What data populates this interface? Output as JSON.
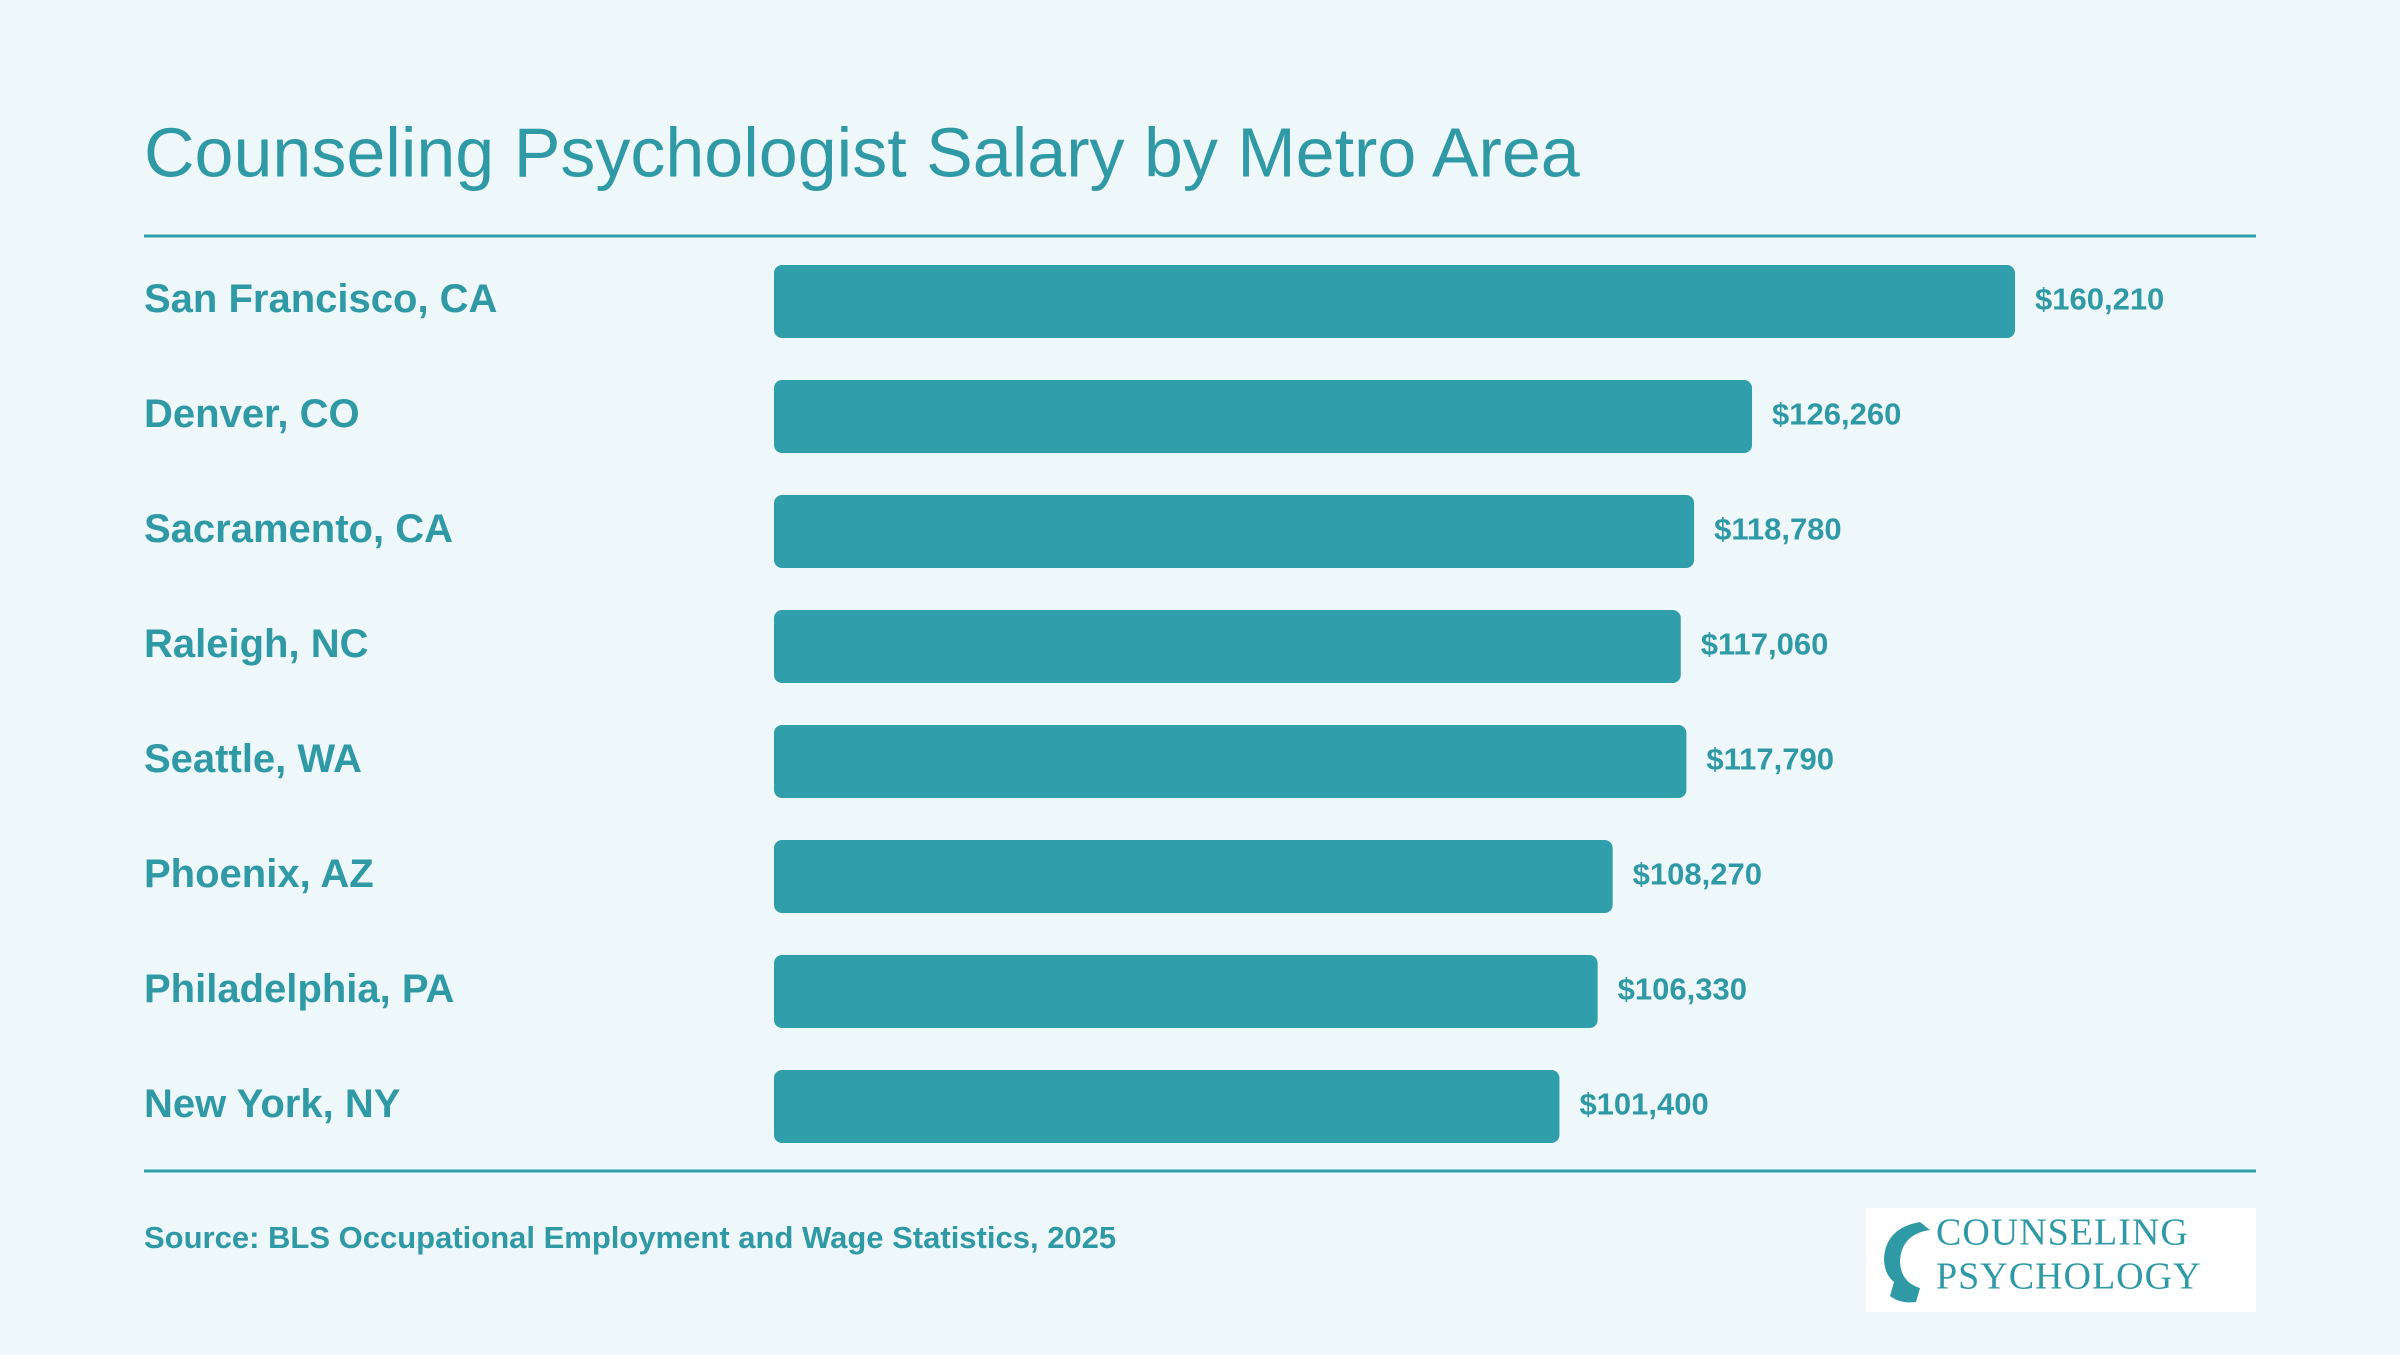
{
  "chart_data": {
    "type": "bar",
    "title": "Counseling Psychologist Salary by Metro Area",
    "categories": [
      "San Francisco, CA",
      "Denver, CO",
      "Sacramento, CA",
      "Raleigh, NC",
      "Seattle, WA",
      "Phoenix, AZ",
      "Philadelphia, PA",
      "New York, NY"
    ],
    "values": [
      160210,
      126260,
      118780,
      117060,
      117790,
      108270,
      106330,
      101400
    ],
    "value_labels": [
      "$160,210",
      "$126,260",
      "$118,780",
      "$117,060",
      "$117,790",
      "$108,270",
      "$106,330",
      "$101,400"
    ],
    "color": "#319fab",
    "source": "Source: BLS Occupational Employment and Wage Statistics, 2025"
  },
  "logo": {
    "lines": [
      "COUNSELING",
      "PSYCHOLOGY"
    ]
  }
}
